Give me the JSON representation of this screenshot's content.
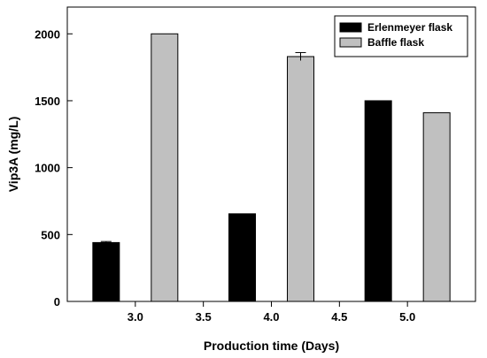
{
  "chart_data": {
    "type": "bar",
    "title": "",
    "xlabel": "Production time (Days)",
    "ylabel": "Vip3A (mg/L)",
    "ylim": [
      0,
      2200
    ],
    "xlim": [
      2.5,
      5.5
    ],
    "x_ticks": [
      "3.0",
      "3.5",
      "4.0",
      "4.5",
      "5.0"
    ],
    "y_ticks": [
      "0",
      "500",
      "1000",
      "1500",
      "2000"
    ],
    "grid": false,
    "legend_position": "top-right",
    "categories": [
      "3.0",
      "4.0",
      "5.0"
    ],
    "series": [
      {
        "name": "Erlenmeyer flask",
        "color": "#000000",
        "values": [
          440,
          655,
          1500
        ],
        "errors": [
          8,
          0,
          0
        ]
      },
      {
        "name": "Baffle flask",
        "color": "#c0c0c0",
        "values": [
          2000,
          1830,
          1410
        ],
        "errors": [
          0,
          30,
          0
        ]
      }
    ]
  }
}
